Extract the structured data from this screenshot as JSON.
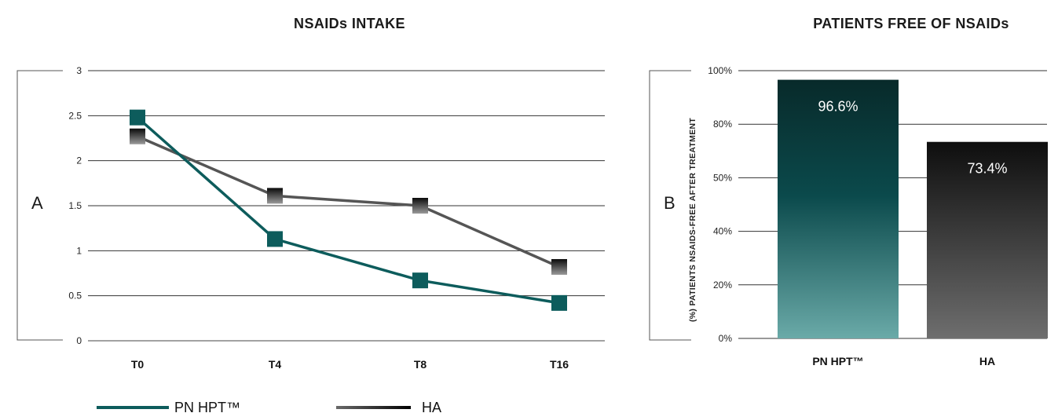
{
  "chart_data": [
    {
      "type": "line",
      "panel": "A",
      "title": "NSAIDs INTAKE",
      "categories": [
        "T0",
        "T4",
        "T8",
        "T16"
      ],
      "series": [
        {
          "name": "PN HPT™",
          "values": [
            2.48,
            1.13,
            0.67,
            0.42
          ],
          "color": "#0d5c5c"
        },
        {
          "name": "HA",
          "values": [
            2.27,
            1.61,
            1.5,
            0.82
          ],
          "color": "#555555"
        }
      ],
      "ylim": [
        0,
        3
      ],
      "yticks": [
        "0",
        "0.5",
        "1",
        "1.5",
        "2",
        "2.5",
        "3"
      ],
      "grid": true,
      "legend": "bottom"
    },
    {
      "type": "bar",
      "panel": "B",
      "title": "PATIENTS FREE OF NSAIDs",
      "ylabel": "(%) PATIENTS NSAIDS-FREE AFTER TREATMENT",
      "categories": [
        "PN HPT™",
        "HA"
      ],
      "values": [
        96.6,
        73.4
      ],
      "value_labels": [
        "96.6%",
        "73.4%"
      ],
      "yticks": [
        "0%",
        "20%",
        "40%",
        "50%",
        "80%",
        "100%"
      ],
      "ylim": [
        0,
        100
      ],
      "colors": {
        "PN HPT™": "#0d4f4f",
        "HA": "#3a3a3a"
      },
      "grid": true
    }
  ],
  "panels": {
    "a": "A",
    "b": "B"
  }
}
